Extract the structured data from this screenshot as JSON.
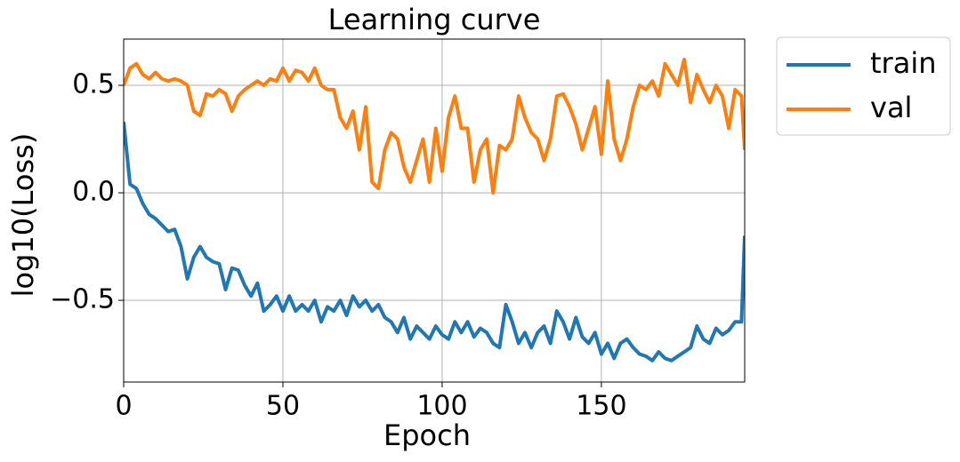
{
  "chart_data": {
    "type": "line",
    "title": "Learning curve",
    "x_label": "Epoch",
    "y_label": "log10(Loss)",
    "x": [
      0,
      2,
      4,
      6,
      8,
      10,
      12,
      14,
      16,
      18,
      20,
      22,
      24,
      26,
      28,
      30,
      32,
      34,
      36,
      38,
      40,
      42,
      44,
      46,
      48,
      50,
      52,
      54,
      56,
      58,
      60,
      62,
      64,
      66,
      68,
      70,
      72,
      74,
      76,
      78,
      80,
      82,
      84,
      86,
      88,
      90,
      92,
      94,
      96,
      98,
      100,
      102,
      104,
      106,
      108,
      110,
      112,
      114,
      116,
      118,
      120,
      122,
      124,
      126,
      128,
      130,
      132,
      134,
      136,
      138,
      140,
      142,
      144,
      146,
      148,
      150,
      152,
      154,
      156,
      158,
      160,
      162,
      164,
      166,
      168,
      170,
      172,
      174,
      176,
      178,
      180,
      182,
      184,
      186,
      188,
      190,
      192,
      194,
      195
    ],
    "series": [
      {
        "name": "train",
        "color": "#1f77b4",
        "values": [
          0.33,
          0.04,
          0.02,
          -0.05,
          -0.1,
          -0.12,
          -0.15,
          -0.18,
          -0.17,
          -0.25,
          -0.4,
          -0.3,
          -0.25,
          -0.3,
          -0.32,
          -0.33,
          -0.45,
          -0.35,
          -0.36,
          -0.43,
          -0.48,
          -0.42,
          -0.55,
          -0.52,
          -0.48,
          -0.55,
          -0.48,
          -0.55,
          -0.52,
          -0.55,
          -0.5,
          -0.6,
          -0.53,
          -0.55,
          -0.5,
          -0.57,
          -0.48,
          -0.53,
          -0.5,
          -0.55,
          -0.52,
          -0.58,
          -0.6,
          -0.65,
          -0.58,
          -0.68,
          -0.62,
          -0.65,
          -0.68,
          -0.62,
          -0.66,
          -0.68,
          -0.6,
          -0.65,
          -0.6,
          -0.67,
          -0.63,
          -0.65,
          -0.7,
          -0.72,
          -0.52,
          -0.6,
          -0.7,
          -0.65,
          -0.72,
          -0.65,
          -0.62,
          -0.7,
          -0.55,
          -0.6,
          -0.68,
          -0.58,
          -0.67,
          -0.7,
          -0.65,
          -0.75,
          -0.7,
          -0.77,
          -0.7,
          -0.68,
          -0.72,
          -0.75,
          -0.76,
          -0.78,
          -0.74,
          -0.77,
          -0.78,
          -0.76,
          -0.74,
          -0.72,
          -0.62,
          -0.68,
          -0.7,
          -0.63,
          -0.66,
          -0.64,
          -0.6,
          -0.6,
          -0.2
        ]
      },
      {
        "name": "val",
        "color": "#ff7f0e",
        "values": [
          0.5,
          0.58,
          0.6,
          0.55,
          0.53,
          0.56,
          0.53,
          0.52,
          0.53,
          0.52,
          0.5,
          0.38,
          0.36,
          0.46,
          0.45,
          0.48,
          0.46,
          0.38,
          0.45,
          0.48,
          0.5,
          0.52,
          0.5,
          0.53,
          0.52,
          0.58,
          0.52,
          0.57,
          0.56,
          0.52,
          0.58,
          0.5,
          0.48,
          0.48,
          0.35,
          0.3,
          0.38,
          0.2,
          0.4,
          0.05,
          0.02,
          0.2,
          0.28,
          0.25,
          0.12,
          0.05,
          0.15,
          0.25,
          0.05,
          0.3,
          0.1,
          0.35,
          0.45,
          0.3,
          0.3,
          0.05,
          0.2,
          0.25,
          0.0,
          0.22,
          0.2,
          0.25,
          0.45,
          0.35,
          0.28,
          0.25,
          0.15,
          0.25,
          0.45,
          0.46,
          0.4,
          0.32,
          0.2,
          0.3,
          0.4,
          0.18,
          0.52,
          0.25,
          0.15,
          0.25,
          0.4,
          0.5,
          0.48,
          0.52,
          0.45,
          0.6,
          0.55,
          0.5,
          0.62,
          0.42,
          0.55,
          0.48,
          0.42,
          0.5,
          0.45,
          0.3,
          0.48,
          0.45,
          0.2
        ]
      }
    ],
    "xlim": [
      0,
      195
    ],
    "ylim": [
      -0.88,
      0.715
    ],
    "xticks": [
      0,
      50,
      100,
      150
    ],
    "yticks": [
      {
        "value": -0.5,
        "label": "−0.5"
      },
      {
        "value": 0,
        "label": "0.0"
      },
      0.5
    ],
    "grid": true,
    "legend": "outside upper right"
  }
}
